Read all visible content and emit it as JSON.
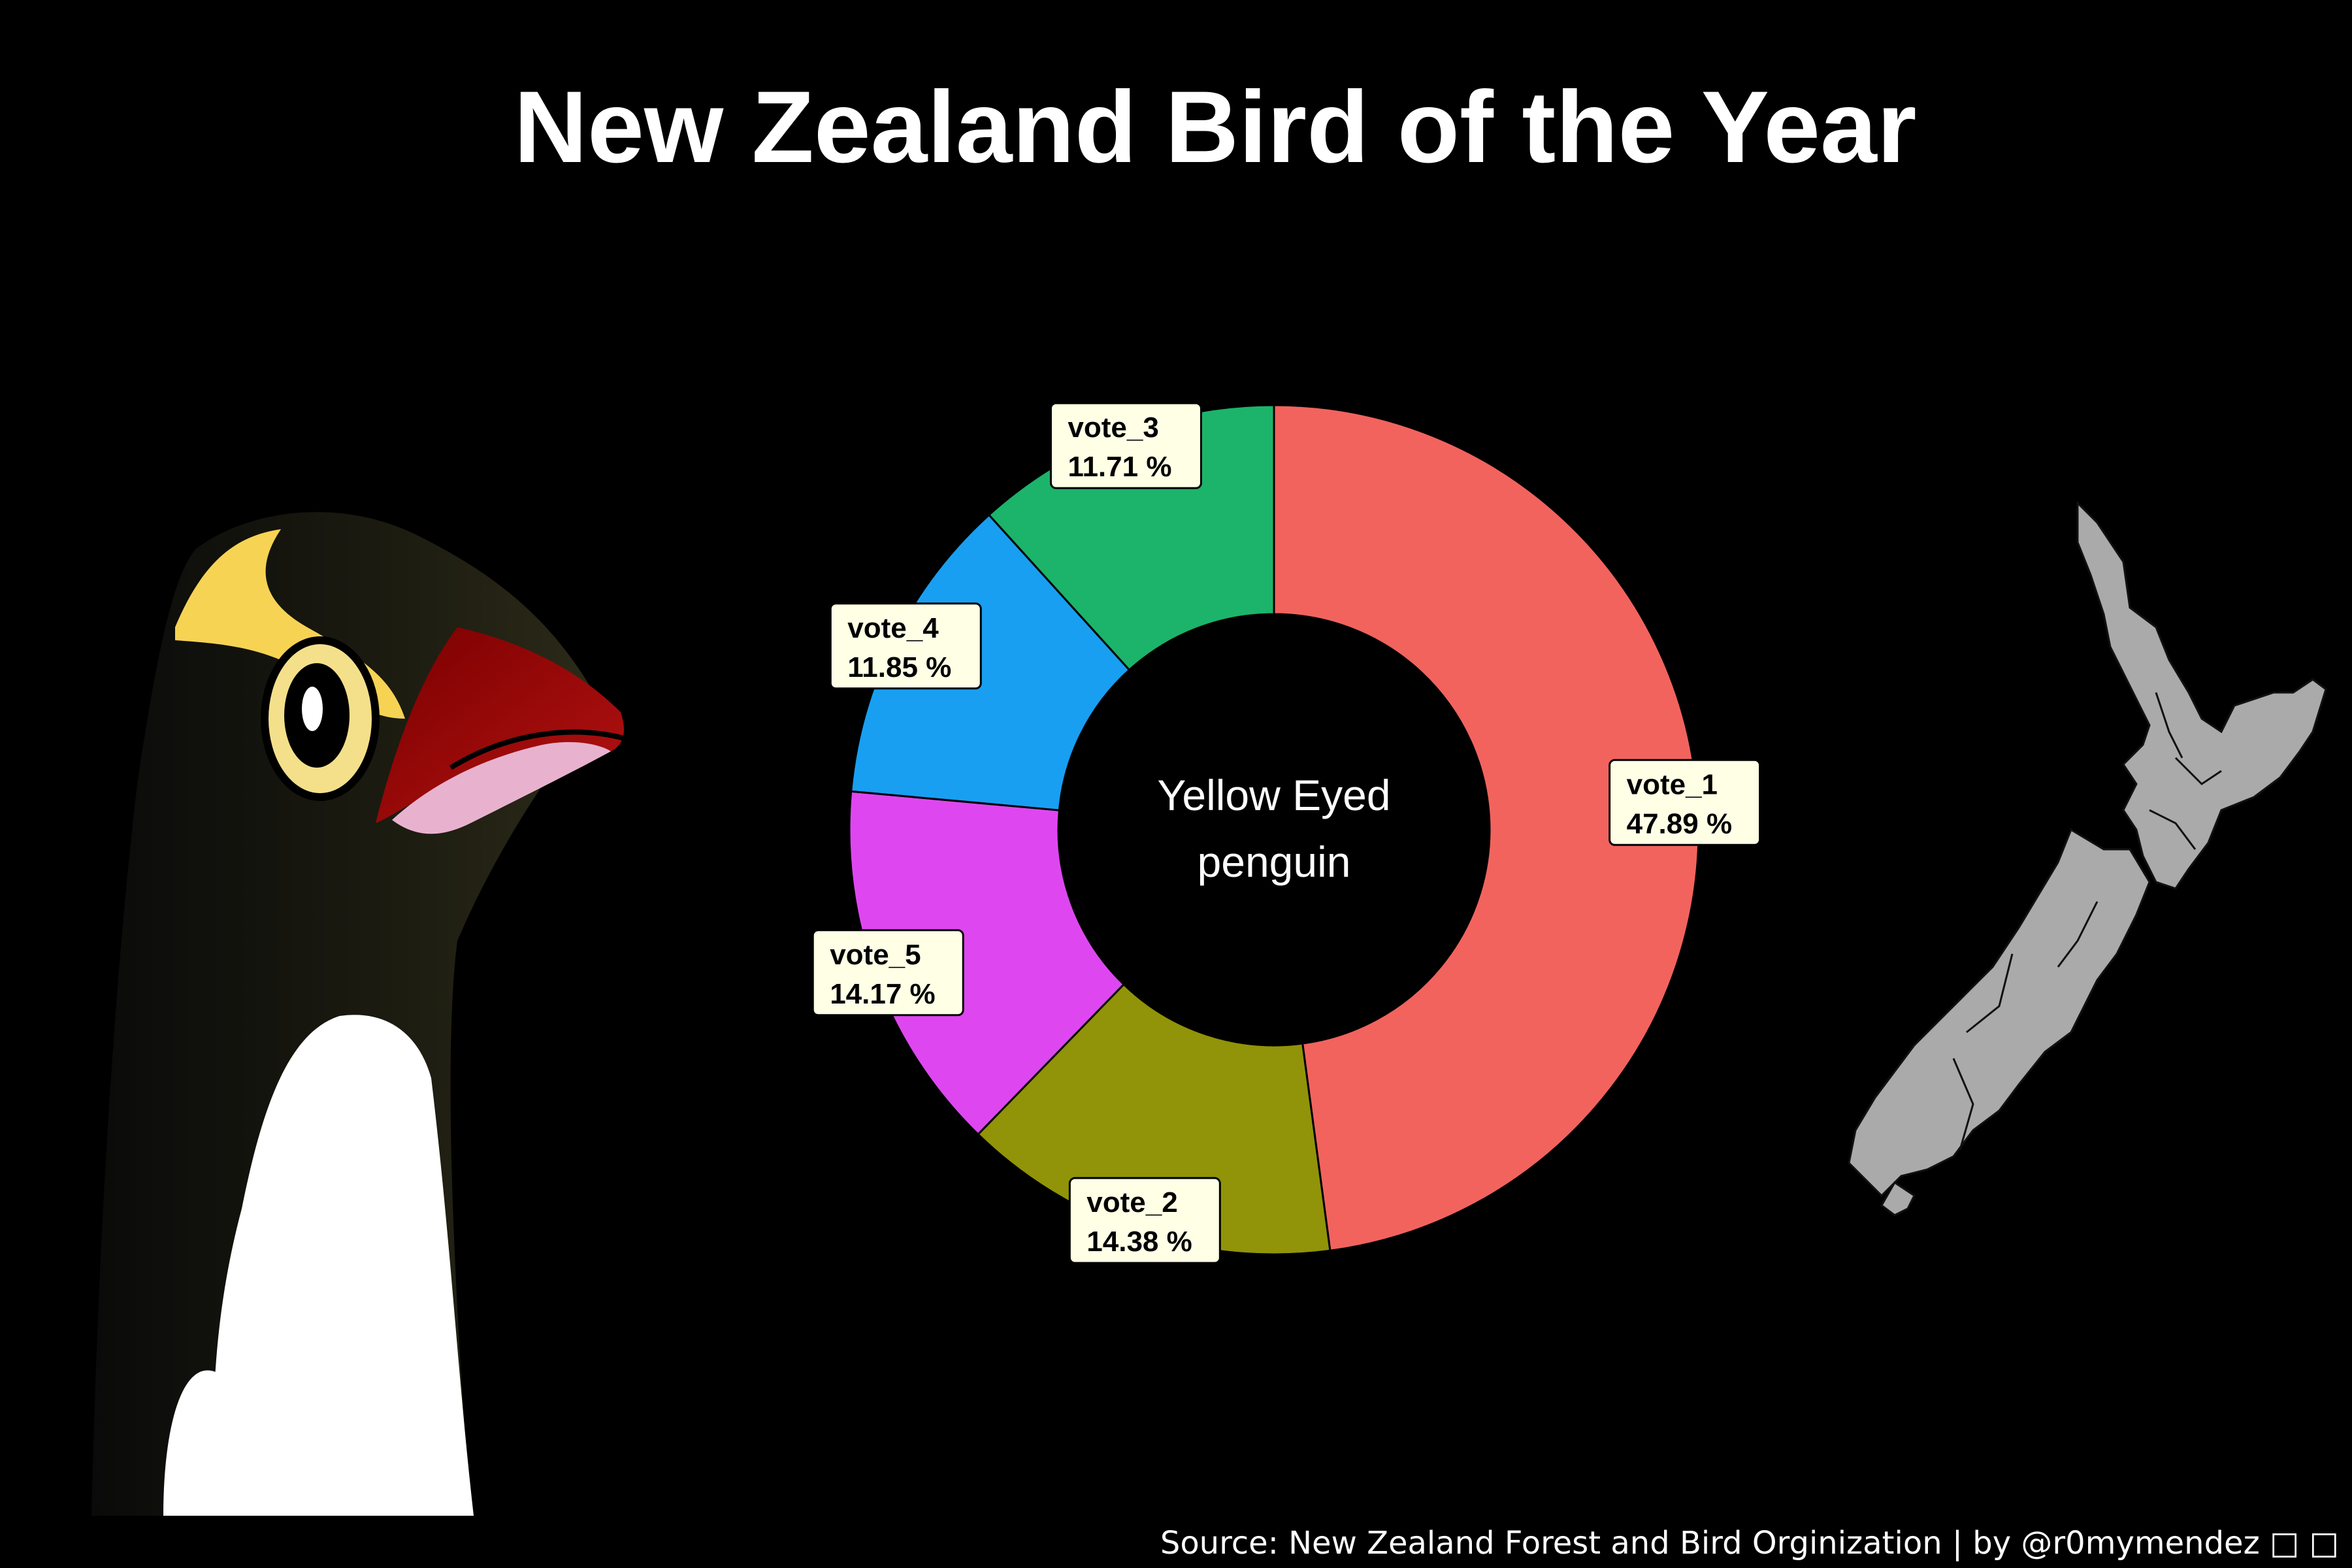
{
  "chart_data": {
    "type": "donut",
    "title": "New Zealand Bird of the Year",
    "center_label": [
      "Yellow Eyed",
      "penguin"
    ],
    "categories": [
      "vote_1",
      "vote_2",
      "vote_5",
      "vote_4",
      "vote_3"
    ],
    "values": [
      47.89,
      14.38,
      14.17,
      11.85,
      11.71
    ],
    "value_labels": [
      "47.89 %",
      "14.38 %",
      "14.17 %",
      "11.85 %",
      "11.71 %"
    ],
    "colors": [
      "#F2635E",
      "#919408",
      "#DE47F0",
      "#189FF2",
      "#1BB46A"
    ],
    "label_fill": "#FFFFE6"
  },
  "source": "Source: New Zealand Forest and Bird Orginization  | by @r0mymendez □ □",
  "illustrations": {
    "left": "yellow-eyed-penguin-illustration",
    "right": "new-zealand-map"
  }
}
